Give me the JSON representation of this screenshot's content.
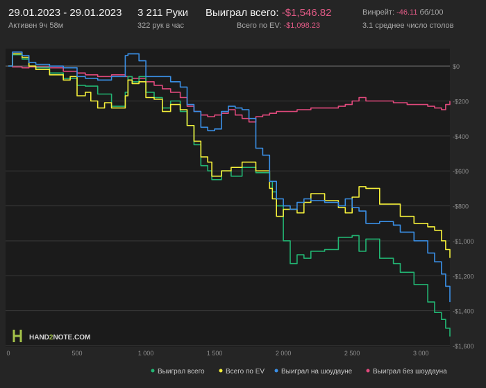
{
  "header": {
    "date_range": "29.01.2023 - 29.01.2023",
    "active_time": "Активен 9ч 58м",
    "hands": "3 211 Руки",
    "hands_per_hour": "322 рук в час",
    "won_total_label": "Выиграл всего:",
    "won_total_value": "-$1,546.82",
    "ev_total_label": "Всего по EV:",
    "ev_total_value": "-$1,098.23",
    "winrate_label": "Винрейт:",
    "winrate_value": "-46.11",
    "winrate_unit": "бб/100",
    "avg_tables": "3.1 среднее число столов"
  },
  "logo": {
    "text_left": "HAND",
    "text_mid": "2",
    "text_right": "NOTE.COM"
  },
  "colors": {
    "background": "#252525",
    "plot_background": "#1b1b1b",
    "won": "#22b573",
    "ev": "#f4ef3a",
    "showdown": "#3a8fe6",
    "non_showdown": "#e0497c",
    "negative_text": "#e05a85"
  },
  "chart_data": {
    "type": "line",
    "xlim": [
      0,
      3211
    ],
    "ylim": [
      -1600,
      100
    ],
    "x_ticks": [
      0,
      500,
      1000,
      1500,
      2000,
      2500,
      3000
    ],
    "x_tick_labels": [
      "0",
      "500",
      "1 000",
      "1 500",
      "2 000",
      "2 500",
      "3 000"
    ],
    "y_ticks": [
      0,
      -200,
      -400,
      -600,
      -800,
      -1000,
      -1200,
      -1400,
      -1600
    ],
    "y_tick_labels": [
      "$0",
      "-$200",
      "-$400",
      "-$600",
      "-$800",
      "-$1,000",
      "-$1,200",
      "-$1,400",
      "-$1,600"
    ],
    "grid": true,
    "legend_position": "bottom",
    "series": [
      {
        "name": "Выиграл всего",
        "color_key": "won",
        "points": [
          [
            0,
            0
          ],
          [
            30,
            65
          ],
          [
            100,
            40
          ],
          [
            150,
            0
          ],
          [
            200,
            -10
          ],
          [
            300,
            -40
          ],
          [
            400,
            -70
          ],
          [
            500,
            -110
          ],
          [
            560,
            -115
          ],
          [
            650,
            -160
          ],
          [
            750,
            -230
          ],
          [
            850,
            -150
          ],
          [
            870,
            -60
          ],
          [
            900,
            -90
          ],
          [
            950,
            -60
          ],
          [
            1000,
            -150
          ],
          [
            1060,
            -180
          ],
          [
            1120,
            -240
          ],
          [
            1180,
            -200
          ],
          [
            1250,
            -260
          ],
          [
            1300,
            -340
          ],
          [
            1350,
            -450
          ],
          [
            1400,
            -570
          ],
          [
            1450,
            -600
          ],
          [
            1480,
            -650
          ],
          [
            1550,
            -600
          ],
          [
            1620,
            -630
          ],
          [
            1700,
            -580
          ],
          [
            1800,
            -610
          ],
          [
            1900,
            -660
          ],
          [
            1920,
            -720
          ],
          [
            1950,
            -800
          ],
          [
            2000,
            -1000
          ],
          [
            2050,
            -1130
          ],
          [
            2100,
            -1080
          ],
          [
            2150,
            -1100
          ],
          [
            2200,
            -1060
          ],
          [
            2300,
            -1050
          ],
          [
            2400,
            -980
          ],
          [
            2500,
            -970
          ],
          [
            2550,
            -1060
          ],
          [
            2600,
            -990
          ],
          [
            2700,
            -1100
          ],
          [
            2800,
            -1130
          ],
          [
            2850,
            -1180
          ],
          [
            2950,
            -1250
          ],
          [
            3050,
            -1350
          ],
          [
            3100,
            -1410
          ],
          [
            3150,
            -1450
          ],
          [
            3180,
            -1500
          ],
          [
            3211,
            -1547
          ]
        ]
      },
      {
        "name": "Всего по EV",
        "color_key": "ev",
        "points": [
          [
            0,
            0
          ],
          [
            30,
            70
          ],
          [
            100,
            50
          ],
          [
            150,
            0
          ],
          [
            200,
            -20
          ],
          [
            300,
            -50
          ],
          [
            400,
            -80
          ],
          [
            450,
            -60
          ],
          [
            500,
            -170
          ],
          [
            560,
            -150
          ],
          [
            600,
            -200
          ],
          [
            650,
            -240
          ],
          [
            700,
            -210
          ],
          [
            750,
            -240
          ],
          [
            850,
            -170
          ],
          [
            870,
            -80
          ],
          [
            900,
            -100
          ],
          [
            950,
            -90
          ],
          [
            1000,
            -180
          ],
          [
            1060,
            -190
          ],
          [
            1120,
            -260
          ],
          [
            1180,
            -220
          ],
          [
            1250,
            -250
          ],
          [
            1300,
            -340
          ],
          [
            1350,
            -430
          ],
          [
            1400,
            -520
          ],
          [
            1450,
            -550
          ],
          [
            1480,
            -630
          ],
          [
            1550,
            -600
          ],
          [
            1620,
            -580
          ],
          [
            1700,
            -550
          ],
          [
            1800,
            -600
          ],
          [
            1900,
            -700
          ],
          [
            1920,
            -760
          ],
          [
            1950,
            -860
          ],
          [
            2000,
            -820
          ],
          [
            2100,
            -840
          ],
          [
            2150,
            -780
          ],
          [
            2200,
            -730
          ],
          [
            2300,
            -770
          ],
          [
            2400,
            -810
          ],
          [
            2450,
            -840
          ],
          [
            2500,
            -750
          ],
          [
            2550,
            -690
          ],
          [
            2600,
            -700
          ],
          [
            2700,
            -790
          ],
          [
            2800,
            -790
          ],
          [
            2850,
            -860
          ],
          [
            2950,
            -900
          ],
          [
            3050,
            -920
          ],
          [
            3100,
            -940
          ],
          [
            3150,
            -1000
          ],
          [
            3180,
            -1050
          ],
          [
            3211,
            -1098
          ]
        ]
      },
      {
        "name": "Выиграл на шоудауне",
        "color_key": "showdown",
        "points": [
          [
            0,
            0
          ],
          [
            30,
            80
          ],
          [
            100,
            60
          ],
          [
            150,
            20
          ],
          [
            200,
            10
          ],
          [
            300,
            0
          ],
          [
            400,
            -10
          ],
          [
            500,
            -60
          ],
          [
            560,
            -70
          ],
          [
            650,
            -80
          ],
          [
            750,
            -60
          ],
          [
            850,
            60
          ],
          [
            870,
            70
          ],
          [
            900,
            70
          ],
          [
            950,
            30
          ],
          [
            1000,
            -60
          ],
          [
            1100,
            -60
          ],
          [
            1180,
            -90
          ],
          [
            1250,
            -120
          ],
          [
            1300,
            -220
          ],
          [
            1350,
            -260
          ],
          [
            1400,
            -350
          ],
          [
            1450,
            -370
          ],
          [
            1500,
            -360
          ],
          [
            1550,
            -260
          ],
          [
            1600,
            -230
          ],
          [
            1650,
            -240
          ],
          [
            1700,
            -250
          ],
          [
            1750,
            -300
          ],
          [
            1800,
            -470
          ],
          [
            1850,
            -510
          ],
          [
            1900,
            -660
          ],
          [
            1950,
            -760
          ],
          [
            2000,
            -800
          ],
          [
            2050,
            -820
          ],
          [
            2100,
            -780
          ],
          [
            2150,
            -760
          ],
          [
            2200,
            -770
          ],
          [
            2300,
            -780
          ],
          [
            2400,
            -800
          ],
          [
            2450,
            -760
          ],
          [
            2500,
            -810
          ],
          [
            2550,
            -830
          ],
          [
            2600,
            -900
          ],
          [
            2700,
            -890
          ],
          [
            2800,
            -910
          ],
          [
            2850,
            -950
          ],
          [
            2950,
            -1000
          ],
          [
            3050,
            -1070
          ],
          [
            3100,
            -1120
          ],
          [
            3150,
            -1190
          ],
          [
            3180,
            -1260
          ],
          [
            3211,
            -1350
          ]
        ]
      },
      {
        "name": "Выиграл без шоудауна",
        "color_key": "non_showdown",
        "points": [
          [
            0,
            0
          ],
          [
            30,
            -5
          ],
          [
            100,
            -10
          ],
          [
            150,
            -5
          ],
          [
            200,
            -5
          ],
          [
            300,
            -10
          ],
          [
            400,
            -30
          ],
          [
            500,
            -40
          ],
          [
            560,
            -50
          ],
          [
            650,
            -60
          ],
          [
            750,
            -50
          ],
          [
            850,
            -60
          ],
          [
            900,
            -70
          ],
          [
            1000,
            -90
          ],
          [
            1060,
            -110
          ],
          [
            1120,
            -130
          ],
          [
            1180,
            -150
          ],
          [
            1250,
            -180
          ],
          [
            1300,
            -230
          ],
          [
            1350,
            -260
          ],
          [
            1400,
            -280
          ],
          [
            1450,
            -290
          ],
          [
            1500,
            -280
          ],
          [
            1550,
            -270
          ],
          [
            1600,
            -250
          ],
          [
            1650,
            -280
          ],
          [
            1700,
            -300
          ],
          [
            1750,
            -320
          ],
          [
            1800,
            -290
          ],
          [
            1850,
            -280
          ],
          [
            1900,
            -270
          ],
          [
            1950,
            -260
          ],
          [
            2000,
            -260
          ],
          [
            2100,
            -250
          ],
          [
            2200,
            -240
          ],
          [
            2300,
            -240
          ],
          [
            2400,
            -230
          ],
          [
            2450,
            -220
          ],
          [
            2500,
            -200
          ],
          [
            2550,
            -180
          ],
          [
            2600,
            -200
          ],
          [
            2700,
            -200
          ],
          [
            2800,
            -210
          ],
          [
            2900,
            -220
          ],
          [
            3000,
            -220
          ],
          [
            3050,
            -230
          ],
          [
            3100,
            -240
          ],
          [
            3150,
            -250
          ],
          [
            3180,
            -220
          ],
          [
            3211,
            -200
          ]
        ]
      }
    ]
  }
}
